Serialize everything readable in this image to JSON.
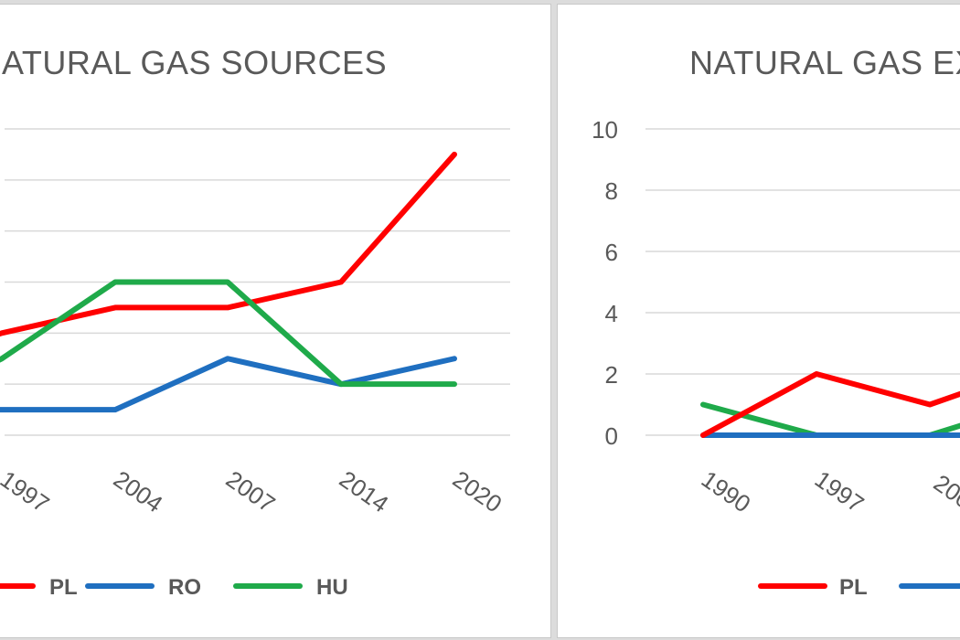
{
  "chart_data": [
    {
      "type": "line",
      "title": "ATURAL GAS SOURCES",
      "categories": [
        "1997",
        "2004",
        "2007",
        "2014",
        "2020"
      ],
      "ylim": [
        0,
        6
      ],
      "grid": true,
      "legend_position": "bottom",
      "series": [
        {
          "name": "PL",
          "color": "#ff0000",
          "values": [
            2,
            2.5,
            2.5,
            3,
            5.5
          ]
        },
        {
          "name": "RO",
          "color": "#1f6fc0",
          "values": [
            0.5,
            0.5,
            1.5,
            1,
            1.5
          ]
        },
        {
          "name": "HU",
          "color": "#1faa4a",
          "values": [
            1.5,
            3,
            3,
            1,
            1
          ]
        }
      ],
      "leading_points": {
        "PL": 1.9,
        "RO": 0.5,
        "HU": 1.35
      }
    },
    {
      "type": "line",
      "title": "NATURAL GAS EX",
      "categories": [
        "1990",
        "1997",
        "200"
      ],
      "yticks": [
        "0",
        "2",
        "4",
        "6",
        "8",
        "10"
      ],
      "ylim": [
        0,
        10
      ],
      "grid": true,
      "legend_position": "bottom",
      "series": [
        {
          "name": "PL",
          "color": "#ff0000",
          "values": [
            0,
            2,
            1
          ]
        },
        {
          "name": "RO",
          "color": "#1f6fc0",
          "values": [
            0,
            0,
            0
          ]
        },
        {
          "name": "HU",
          "color": "#1faa4a",
          "values": [
            1,
            0,
            0
          ]
        }
      ]
    }
  ]
}
